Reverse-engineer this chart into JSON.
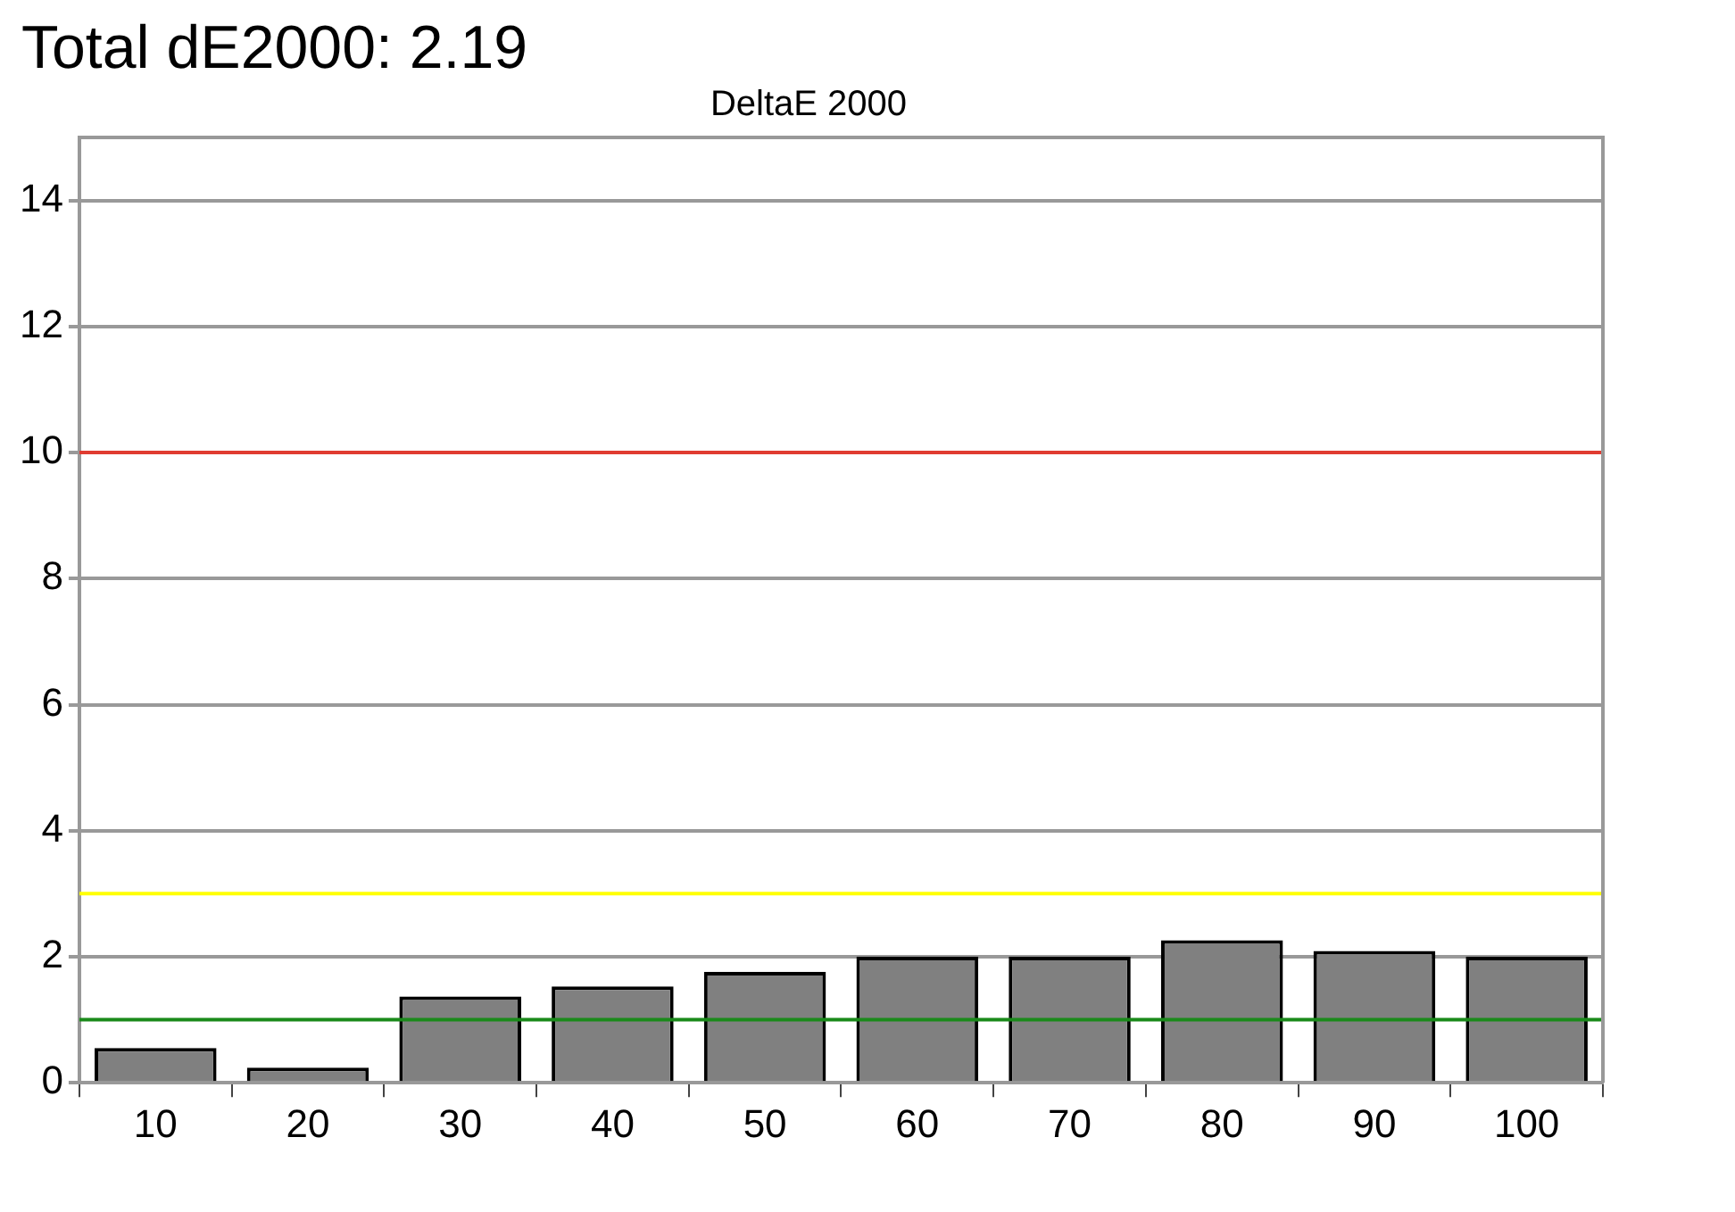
{
  "chart_data": {
    "type": "bar",
    "title": "Total dE2000: 2.19",
    "subtitle": "DeltaE 2000",
    "categories": [
      "10",
      "20",
      "30",
      "40",
      "50",
      "60",
      "70",
      "80",
      "90",
      "100"
    ],
    "values": [
      0.55,
      0.24,
      1.37,
      1.53,
      1.76,
      2.0,
      2.0,
      2.26,
      2.09,
      2.0
    ],
    "color": "#808080",
    "ylim": [
      0,
      15
    ],
    "yticks": [
      0,
      2,
      4,
      6,
      8,
      10,
      12,
      14
    ],
    "grid": "y",
    "legend": false,
    "ref_lines": [
      {
        "axis": "y",
        "value": 10,
        "color": "#e03c31"
      },
      {
        "axis": "y",
        "value": 3,
        "color": "#ffff00"
      },
      {
        "axis": "y",
        "value": 1,
        "color": "#1a8a1a"
      }
    ]
  }
}
